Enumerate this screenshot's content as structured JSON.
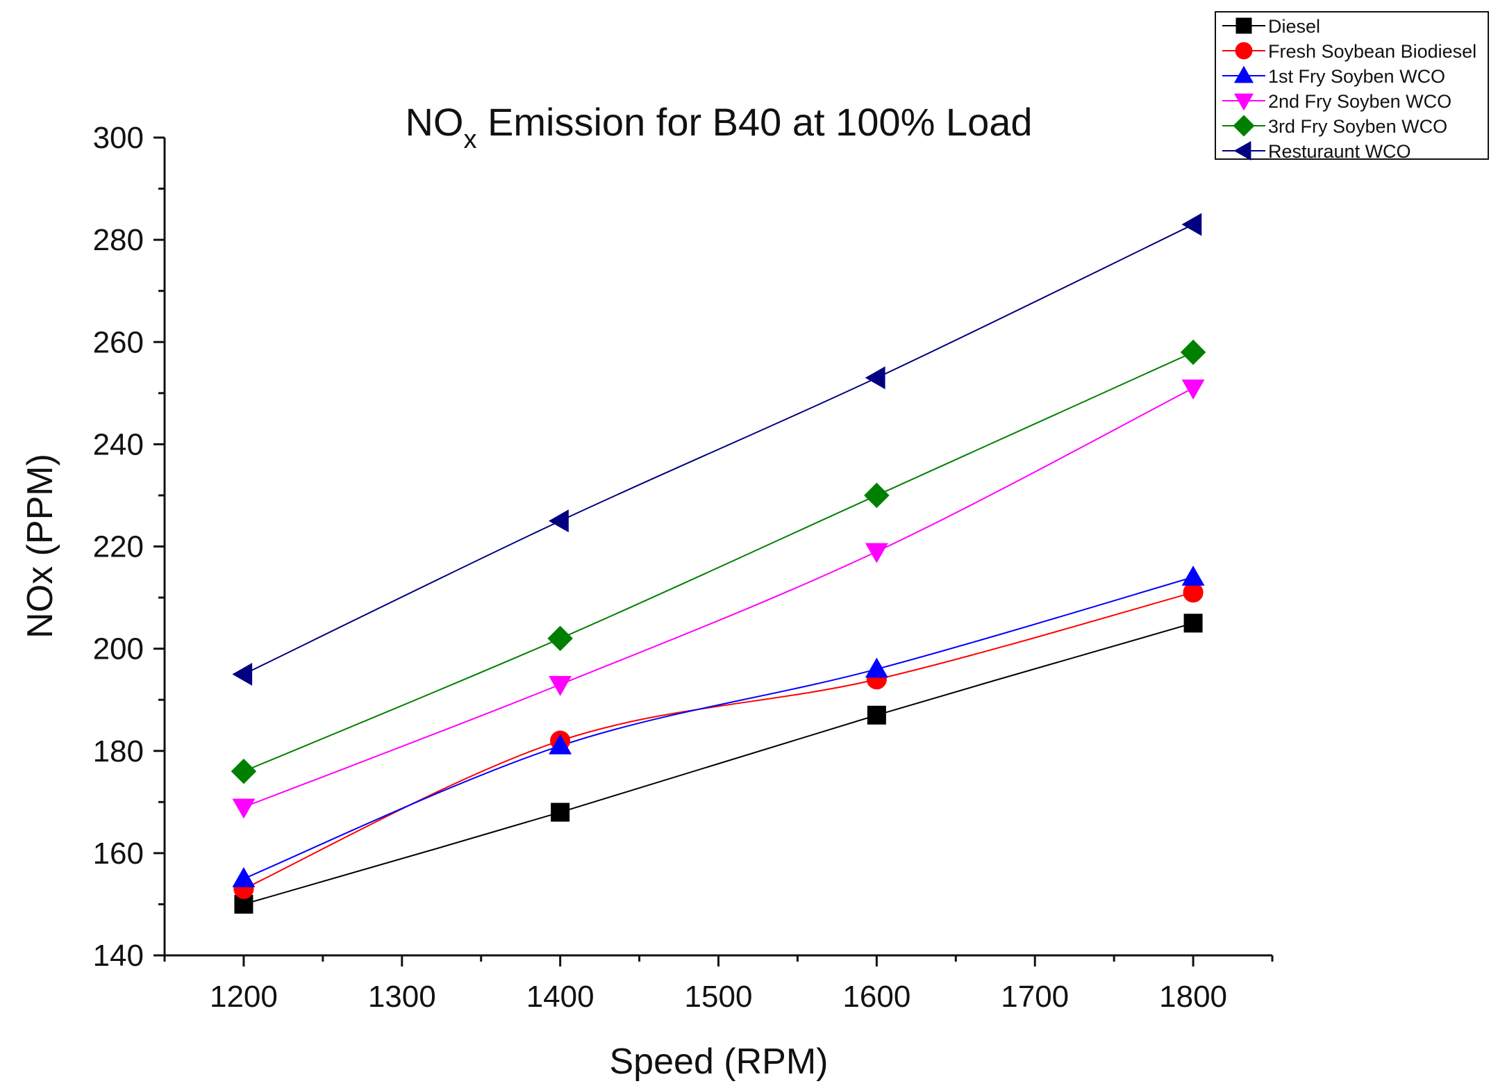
{
  "chart_data": {
    "type": "line",
    "title_main": "NO",
    "title_sub": "x",
    "title_rest": " Emission for B40 at 100% Load",
    "xlabel": "Speed (RPM)",
    "ylabel": "NOx (PPM)",
    "xlim": [
      1150,
      1850
    ],
    "ylim": [
      140,
      300
    ],
    "xticks": [
      1200,
      1300,
      1400,
      1500,
      1600,
      1700,
      1800
    ],
    "yticks": [
      140,
      160,
      180,
      200,
      220,
      240,
      260,
      280,
      300
    ],
    "x": [
      1200,
      1400,
      1600,
      1800
    ],
    "legend_position": "top-right",
    "series": [
      {
        "name": "Diesel",
        "color": "#000000",
        "marker": "square",
        "values": [
          150,
          168,
          187,
          205
        ]
      },
      {
        "name": "Fresh Soybean Biodiesel",
        "color": "#ff0000",
        "marker": "circle",
        "values": [
          153,
          182,
          194,
          211
        ]
      },
      {
        "name": "1st Fry Soyben WCO",
        "color": "#0000ff",
        "marker": "triangle-up",
        "values": [
          155,
          181,
          196,
          214
        ]
      },
      {
        "name": "2nd Fry Soyben WCO",
        "color": "#ff00ff",
        "marker": "triangle-down",
        "values": [
          169,
          193,
          219,
          251
        ]
      },
      {
        "name": "3rd Fry Soyben WCO",
        "color": "#008000",
        "marker": "diamond",
        "values": [
          176,
          202,
          230,
          258
        ]
      },
      {
        "name": "Resturaunt WCO",
        "color": "#000080",
        "marker": "triangle-left",
        "values": [
          195,
          225,
          253,
          283
        ]
      }
    ]
  }
}
